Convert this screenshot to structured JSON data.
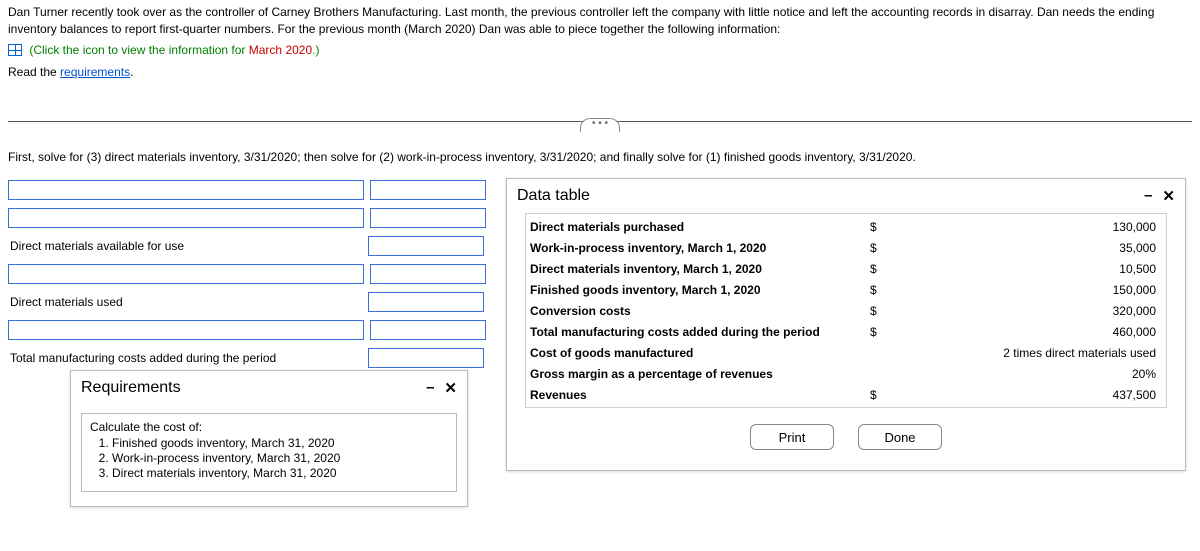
{
  "intro": {
    "line1": "Dan Turner recently took over as the controller of Carney Brothers Manufacturing. Last month, the previous controller left the company with little notice and left the accounting records in disarray. Dan needs the ending inventory balances to report first-quarter numbers. For the previous month (March 2020) Dan was able to piece together the following information:",
    "click_prefix": "(Click the icon to view the information for ",
    "click_month": "March 2020",
    "click_suffix": ".)",
    "read_prefix": "Read the ",
    "requirements_link": "requirements",
    "read_suffix": "."
  },
  "instruction": "First, solve for (3) direct materials inventory, 3/31/2020; then solve for (2) work-in-process inventory, 3/31/2020; and finally solve for (1) finished goods inventory, 3/31/2020.",
  "worksheet": {
    "rows": [
      {
        "label_input": true
      },
      {
        "label_input": true
      },
      {
        "text": "Direct materials available for use"
      },
      {
        "label_input": true
      },
      {
        "text": "Direct materials used"
      },
      {
        "label_input": true
      },
      {
        "text": "Total manufacturing costs added during the period"
      }
    ]
  },
  "requirements": {
    "title": "Requirements",
    "heading": "Calculate the cost of:",
    "items": [
      "Finished goods inventory, March 31, 2020",
      "Work-in-process inventory, March 31, 2020",
      "Direct materials inventory, March 31, 2020"
    ]
  },
  "data_table": {
    "title": "Data table",
    "rows": [
      {
        "label": "Direct materials purchased",
        "currency": "$",
        "value": "130,000"
      },
      {
        "label": "Work-in-process inventory, March 1, 2020",
        "currency": "$",
        "value": "35,000"
      },
      {
        "label": "Direct materials inventory, March 1, 2020",
        "currency": "$",
        "value": "10,500"
      },
      {
        "label": "Finished goods inventory, March 1, 2020",
        "currency": "$",
        "value": "150,000"
      },
      {
        "label": "Conversion costs",
        "currency": "$",
        "value": "320,000"
      },
      {
        "label": "Total manufacturing costs added during the period",
        "currency": "$",
        "value": "460,000"
      },
      {
        "label": "Cost of goods manufactured",
        "currency": "",
        "value": "2 times direct materials used"
      },
      {
        "label": "Gross margin as a percentage of revenues",
        "currency": "",
        "value": "20%"
      },
      {
        "label": "Revenues",
        "currency": "$",
        "value": "437,500"
      }
    ],
    "print": "Print",
    "done": "Done"
  },
  "winctrl": {
    "min": "–",
    "close": "✕"
  },
  "ellipsis": "• • •"
}
